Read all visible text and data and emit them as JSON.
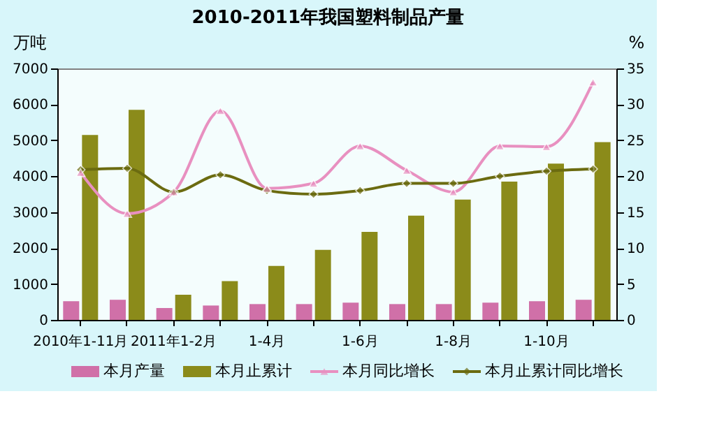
{
  "chart_data": {
    "type": "bar",
    "title": "2010-2011年我国塑料制品产量",
    "ylabel": "万吨",
    "y2label": "%",
    "categories": [
      "2010年1-11月",
      null,
      "2011年1-2月",
      null,
      "1-4月",
      null,
      "1-6月",
      null,
      "1-8月",
      null,
      "1-10月",
      null
    ],
    "series": [
      {
        "name": "本月产量",
        "color": "#d070a8",
        "values": [
          520,
          560,
          330,
          400,
          440,
          440,
          480,
          440,
          440,
          480,
          520,
          560
        ]
      },
      {
        "name": "本月止累计",
        "color": "#8b8b1a",
        "values": [
          5150,
          5850,
          700,
          1080,
          1500,
          1950,
          2450,
          2900,
          3350,
          3850,
          4350,
          4950
        ]
      },
      {
        "name": "本月同比增长",
        "type": "line",
        "axis": "y2",
        "marker": "triangle",
        "color": "#e890c0",
        "values": [
          20.5,
          14.8,
          17.8,
          29.1,
          18.3,
          19.0,
          24.2,
          20.8,
          17.8,
          24.2,
          24.1,
          33.1
        ]
      },
      {
        "name": "本月止累计同比增长",
        "type": "line",
        "axis": "y2",
        "marker": "diamond",
        "color": "#6b6b10",
        "values": [
          20.9,
          21.1,
          17.8,
          20.2,
          18.0,
          17.5,
          18.0,
          19.0,
          19.0,
          20.0,
          20.7,
          21.0
        ]
      }
    ],
    "ylim": [
      0,
      7000
    ],
    "yticks": [
      0,
      1000,
      2000,
      3000,
      4000,
      5000,
      6000,
      7000
    ],
    "y2lim": [
      0,
      35
    ],
    "y2ticks": [
      0,
      5,
      10,
      15,
      20,
      25,
      30,
      35
    ],
    "grid": false,
    "legend": "bottom"
  }
}
